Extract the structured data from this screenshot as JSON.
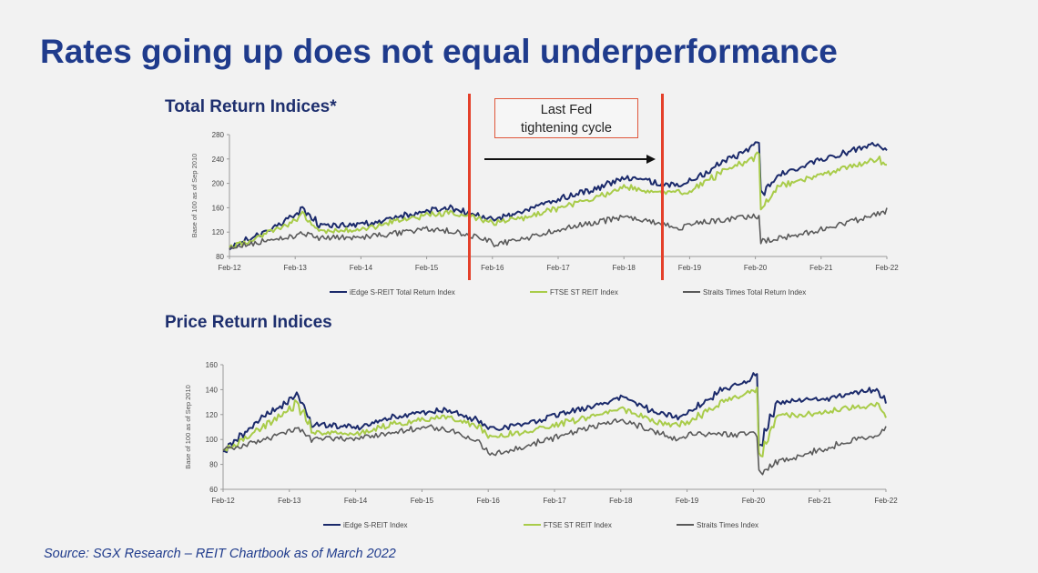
{
  "slide": {
    "title": "Rates going up does not equal underperformance",
    "source": "Source: SGX Research – REIT Chartbook as of March 2022"
  },
  "annotation": {
    "line1": "Last Fed",
    "line2": "tightening cycle",
    "start": "Dec-15",
    "end": "Dec-18",
    "color": "#e4402a"
  },
  "colors": {
    "iedge": "#1b2a6b",
    "ftse": "#a9cc4a",
    "sti": "#5a5a5a",
    "title": "#1f3b8c"
  },
  "chart_data": [
    {
      "type": "line",
      "title": "Total Return Indices*",
      "ylabel": "Base of 100 as of Sep 2010",
      "ylim": [
        80,
        280
      ],
      "yticks": [
        "80",
        "120",
        "160",
        "200",
        "240",
        "280"
      ],
      "xticks": [
        "Feb-12",
        "Feb-13",
        "Feb-14",
        "Feb-15",
        "Feb-16",
        "Feb-17",
        "Feb-18",
        "Feb-19",
        "Feb-20",
        "Feb-21",
        "Feb-22"
      ],
      "grid": false,
      "legend": "bottom",
      "x": [
        "Feb-12",
        "Aug-12",
        "Feb-13",
        "Mar-13",
        "Jun-13",
        "Feb-14",
        "Aug-14",
        "Feb-15",
        "Jun-15",
        "Dec-15",
        "Feb-16",
        "Aug-16",
        "Feb-17",
        "Aug-17",
        "Feb-18",
        "Aug-18",
        "Dec-18",
        "Feb-19",
        "Aug-19",
        "Jan-20",
        "Feb-20",
        "Mar-20",
        "Jun-20",
        "Feb-21",
        "Aug-21",
        "Dec-21",
        "Feb-22"
      ],
      "series": [
        {
          "name": "iEdge S-REIT Total Return Index",
          "values": [
            95,
            120,
            150,
            162,
            130,
            132,
            145,
            155,
            160,
            145,
            140,
            155,
            175,
            190,
            210,
            200,
            195,
            205,
            235,
            260,
            270,
            185,
            215,
            240,
            255,
            265,
            250
          ]
        },
        {
          "name": "FTSE ST REIT Index",
          "values": [
            95,
            115,
            142,
            150,
            122,
            125,
            138,
            148,
            152,
            140,
            135,
            145,
            160,
            175,
            195,
            185,
            185,
            190,
            220,
            240,
            248,
            160,
            195,
            215,
            230,
            240,
            230
          ]
        },
        {
          "name": "Straits Times Total Return Index",
          "values": [
            95,
            105,
            115,
            120,
            110,
            112,
            118,
            125,
            122,
            110,
            100,
            110,
            125,
            135,
            145,
            135,
            128,
            135,
            140,
            145,
            145,
            105,
            110,
            125,
            140,
            150,
            158
          ]
        }
      ]
    },
    {
      "type": "line",
      "title": "Price Return Indices",
      "ylabel": "Base of 100 as of Sep 2010",
      "ylim": [
        60,
        160
      ],
      "yticks": [
        "60",
        "80",
        "100",
        "120",
        "140",
        "160"
      ],
      "xticks": [
        "Feb-12",
        "Feb-13",
        "Feb-14",
        "Feb-15",
        "Feb-16",
        "Feb-17",
        "Feb-18",
        "Feb-19",
        "Feb-20",
        "Feb-21",
        "Feb-22"
      ],
      "grid": false,
      "legend": "bottom",
      "x": [
        "Feb-12",
        "Aug-12",
        "Feb-13",
        "Mar-13",
        "Jun-13",
        "Feb-14",
        "Aug-14",
        "Feb-15",
        "Jun-15",
        "Dec-15",
        "Feb-16",
        "Aug-16",
        "Feb-17",
        "Aug-17",
        "Feb-18",
        "Aug-18",
        "Dec-18",
        "Feb-19",
        "Aug-19",
        "Jan-20",
        "Feb-20",
        "Mar-20",
        "Jun-20",
        "Feb-21",
        "Aug-21",
        "Dec-21",
        "Feb-22"
      ],
      "series": [
        {
          "name": "iEdge S-REIT Index",
          "values": [
            92,
            115,
            132,
            136,
            112,
            110,
            118,
            122,
            124,
            115,
            108,
            112,
            120,
            126,
            134,
            122,
            118,
            122,
            140,
            148,
            152,
            96,
            130,
            132,
            138,
            140,
            130
          ]
        },
        {
          "name": "FTSE ST REIT Index",
          "values": [
            90,
            108,
            125,
            130,
            106,
            104,
            112,
            116,
            118,
            110,
            102,
            106,
            112,
            118,
            125,
            114,
            112,
            114,
            130,
            138,
            140,
            88,
            118,
            122,
            126,
            128,
            118
          ]
        },
        {
          "name": "Straits Times Index",
          "values": [
            92,
            98,
            108,
            110,
            100,
            101,
            105,
            110,
            108,
            98,
            88,
            94,
            102,
            110,
            116,
            106,
            100,
            104,
            104,
            104,
            104,
            74,
            82,
            92,
            100,
            104,
            110
          ]
        }
      ]
    }
  ]
}
